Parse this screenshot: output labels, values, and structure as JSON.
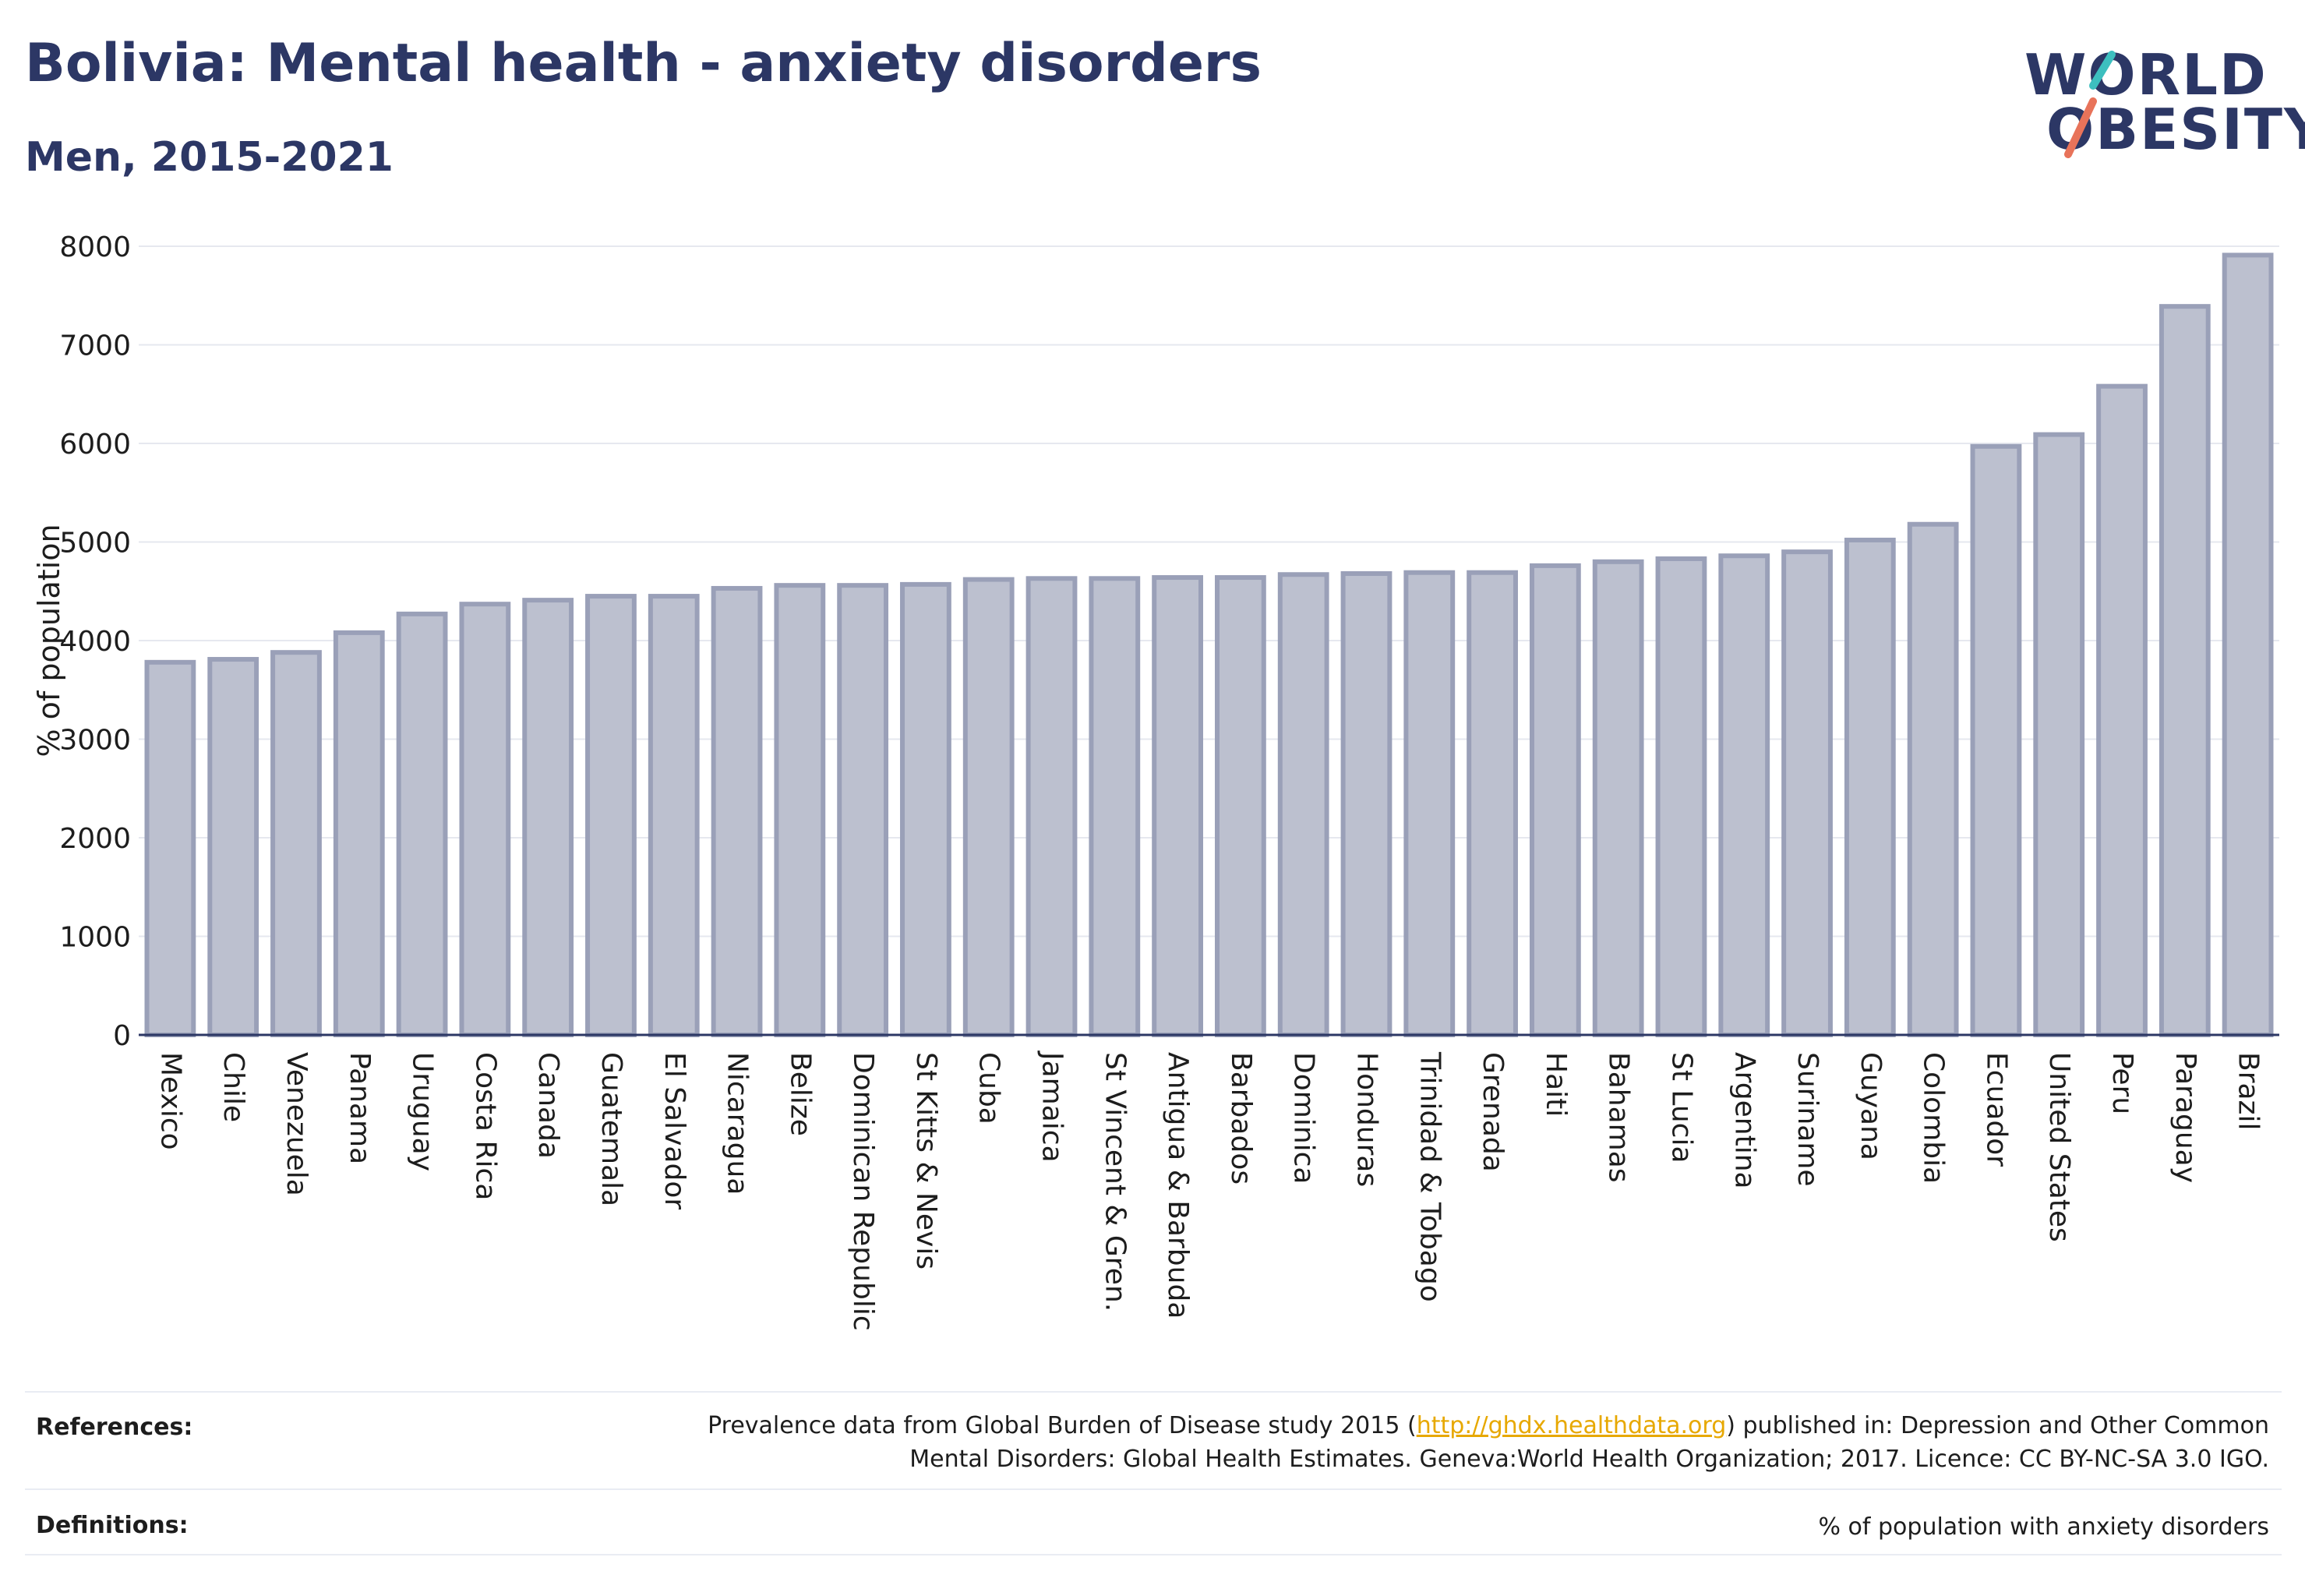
{
  "header": {
    "title": "Bolivia: Mental health - anxiety disorders",
    "subtitle": "Men, 2015-2021"
  },
  "logo": {
    "line1": "WORLD",
    "line2": "OBESITY",
    "accent_colors": [
      "#3dbfbf",
      "#e8735a"
    ]
  },
  "footer": {
    "references_label": "References:",
    "references_text_1": "Prevalence data from Global Burden of Disease study 2015 (",
    "references_link": "http://ghdx.healthdata.org",
    "references_text_2": ") published in: Depression and Other Common",
    "references_text_3": "Mental Disorders: Global Health Estimates. Geneva:World Health Organization; 2017. Licence: CC BY-NC-SA 3.0 IGO.",
    "definitions_label": "Definitions:",
    "definitions_text": "% of population with anxiety disorders"
  },
  "chart_data": {
    "type": "bar",
    "ylabel": "% of population",
    "ylim": [
      0,
      8000
    ],
    "yticks": [
      0,
      1000,
      2000,
      3000,
      4000,
      5000,
      6000,
      7000,
      8000
    ],
    "grid": true,
    "bar_color": "#bcc0cf",
    "bar_stroke": "#9aa0b8",
    "categories": [
      "Mexico",
      "Chile",
      "Venezuela",
      "Panama",
      "Uruguay",
      "Costa Rica",
      "Canada",
      "Guatemala",
      "El Salvador",
      "Nicaragua",
      "Belize",
      "Dominican Republic",
      "St Kitts & Nevis",
      "Cuba",
      "Jamaica",
      "St Vincent & Gren.",
      "Antigua & Barbuda",
      "Barbados",
      "Dominica",
      "Honduras",
      "Trinidad & Tobago",
      "Grenada",
      "Haiti",
      "Bahamas",
      "St Lucia",
      "Argentina",
      "Suriname",
      "Guyana",
      "Colombia",
      "Ecuador",
      "United States",
      "Peru",
      "Paraguay",
      "Brazil"
    ],
    "values": [
      3780,
      3810,
      3880,
      4080,
      4270,
      4370,
      4410,
      4450,
      4450,
      4530,
      4560,
      4560,
      4570,
      4620,
      4630,
      4630,
      4640,
      4640,
      4670,
      4680,
      4690,
      4690,
      4760,
      4800,
      4830,
      4860,
      4900,
      5020,
      5180,
      5970,
      6090,
      6580,
      7390,
      7910
    ]
  }
}
